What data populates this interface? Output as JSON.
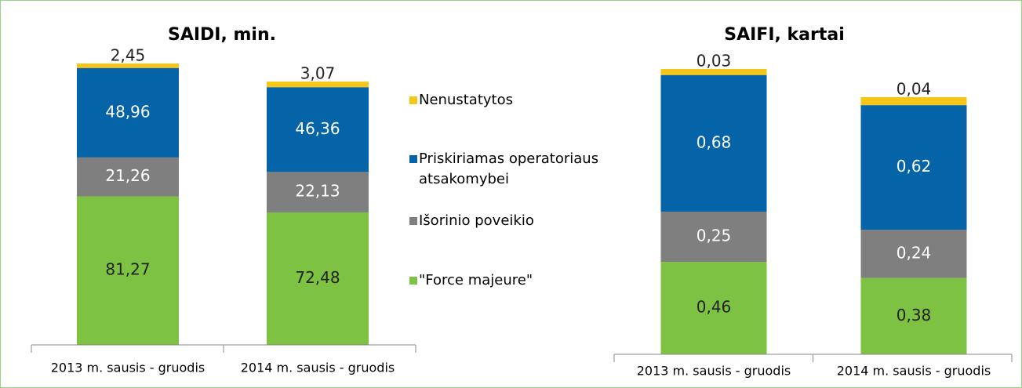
{
  "chart_data": [
    {
      "type": "bar",
      "stacked": true,
      "title": "SAIDI, min.",
      "categories": [
        "2013 m. sausis - gruodis",
        "2014 m. sausis - gruodis"
      ],
      "series": [
        {
          "name": "\"Force majeure\"",
          "color": "#7dc242",
          "values": [
            81.27,
            72.48
          ],
          "value_labels": [
            "81,27",
            "72,48"
          ]
        },
        {
          "name": "Išorinio poveikio",
          "color": "#7f7f7f",
          "values": [
            21.26,
            22.13
          ],
          "value_labels": [
            "21,26",
            "22,13"
          ]
        },
        {
          "name": "Priskiriamas operatoriaus atsakomybei",
          "color": "#0563a8",
          "values": [
            48.96,
            46.36
          ],
          "value_labels": [
            "48,96",
            "46,36"
          ]
        },
        {
          "name": "Nenustatytos",
          "color": "#f5c518",
          "values": [
            2.45,
            3.07
          ],
          "value_labels": [
            "2,45",
            "3,07"
          ]
        }
      ]
    },
    {
      "type": "bar",
      "stacked": true,
      "title": "SAIFI, kartai",
      "categories": [
        "2013 m. sausis - gruodis",
        "2014 m. sausis - gruodis"
      ],
      "series": [
        {
          "name": "\"Force majeure\"",
          "color": "#7dc242",
          "values": [
            0.46,
            0.38
          ],
          "value_labels": [
            "0,46",
            "0,38"
          ]
        },
        {
          "name": "Išorinio poveikio",
          "color": "#7f7f7f",
          "values": [
            0.25,
            0.24
          ],
          "value_labels": [
            "0,25",
            "0,24"
          ]
        },
        {
          "name": "Priskiriamas operatoriaus atsakomybei",
          "color": "#0563a8",
          "values": [
            0.68,
            0.62
          ],
          "value_labels": [
            "0,68",
            "0,62"
          ]
        },
        {
          "name": "Nenustatytos",
          "color": "#f5c518",
          "values": [
            0.03,
            0.04
          ],
          "value_labels": [
            "0,03",
            "0,04"
          ]
        }
      ]
    }
  ]
}
